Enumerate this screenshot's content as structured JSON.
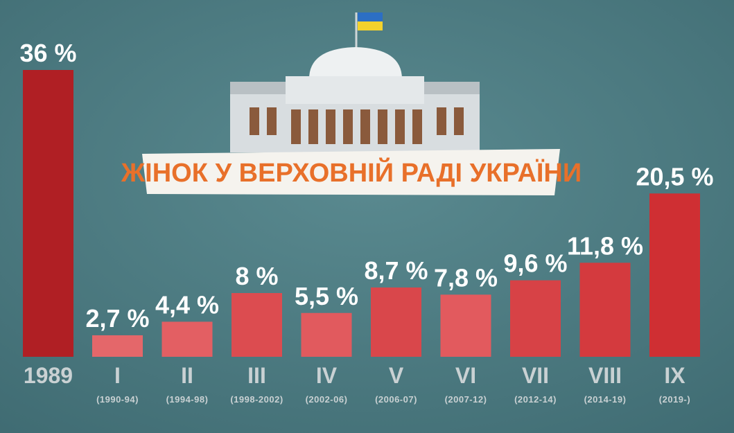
{
  "chart_data": {
    "type": "bar",
    "title": "ЖІНОК У ВЕРХОВНІЙ РАДІ УКРАЇНИ",
    "categories": [
      "1989",
      "I",
      "II",
      "III",
      "IV",
      "V",
      "VI",
      "VII",
      "VIII",
      "IX"
    ],
    "periods": [
      null,
      "(1990-94)",
      "(1994-98)",
      "(1998-2002)",
      "(2002-06)",
      "(2006-07)",
      "(2007-12)",
      "(2012-14)",
      "(2014-19)",
      "(2019-)"
    ],
    "values": [
      36,
      2.7,
      4.4,
      8,
      5.5,
      8.7,
      7.8,
      9.6,
      11.8,
      20.5
    ],
    "value_labels": [
      "36 %",
      "2,7 %",
      "4,4 %",
      "8 %",
      "5,5 %",
      "8,7 %",
      "7,8 %",
      "9,6 %",
      "11,8 %",
      "20,5 %"
    ],
    "colors": [
      "#b01f24",
      "#e4676a",
      "#e35f63",
      "#dc4c50",
      "#e15a5e",
      "#d9474b",
      "#e25a5e",
      "#d74246",
      "#d43a3e",
      "#cf2f33"
    ]
  }
}
